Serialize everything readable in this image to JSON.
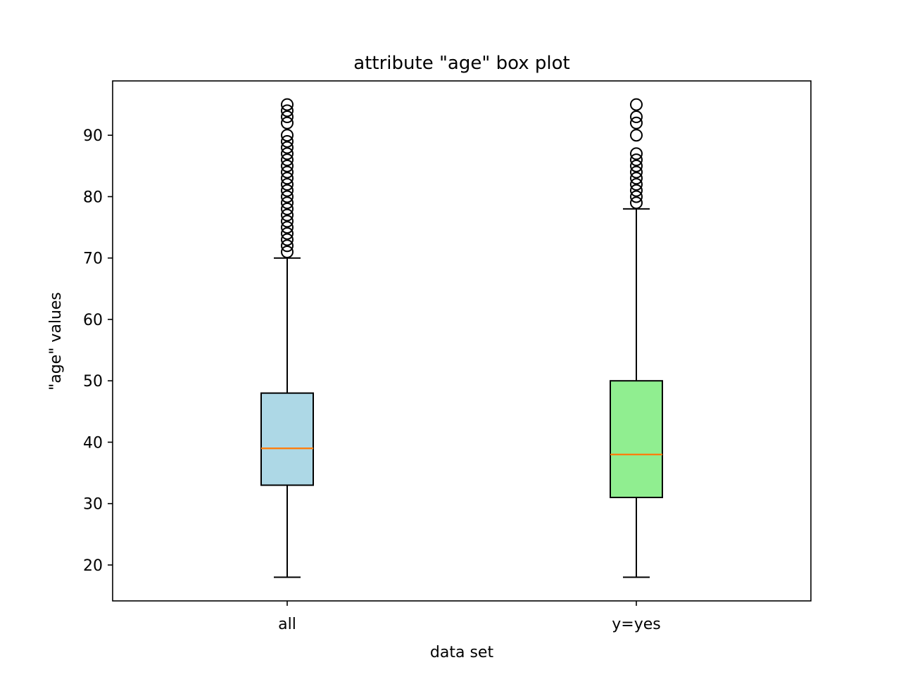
{
  "chart_data": {
    "type": "box",
    "title": "attribute \"age\" box plot",
    "xlabel": "data set",
    "ylabel": "\"age\" values",
    "ylim": [
      14.15,
      98.85
    ],
    "yticks": [
      20,
      30,
      40,
      50,
      60,
      70,
      80,
      90
    ],
    "grid": false,
    "categories": [
      "all",
      "y=yes"
    ],
    "boxes": [
      {
        "category": "all",
        "whisker_low": 18,
        "q1": 33,
        "median": 39,
        "q3": 48,
        "whisker_high": 70,
        "fill": "#add8e6",
        "outliers": [
          71,
          72,
          73,
          74,
          75,
          76,
          77,
          78,
          79,
          80,
          81,
          82,
          83,
          84,
          85,
          86,
          87,
          88,
          89,
          90,
          92,
          93,
          94,
          95
        ]
      },
      {
        "category": "y=yes",
        "whisker_low": 18,
        "q1": 31,
        "median": 38,
        "q3": 50,
        "whisker_high": 78,
        "fill": "#90ee90",
        "outliers": [
          79,
          80,
          81,
          82,
          83,
          84,
          85,
          86,
          87,
          90,
          92,
          93,
          95
        ]
      }
    ],
    "colors": {
      "median": "#ff7f0e",
      "stroke": "#000000",
      "background": "#ffffff"
    }
  }
}
